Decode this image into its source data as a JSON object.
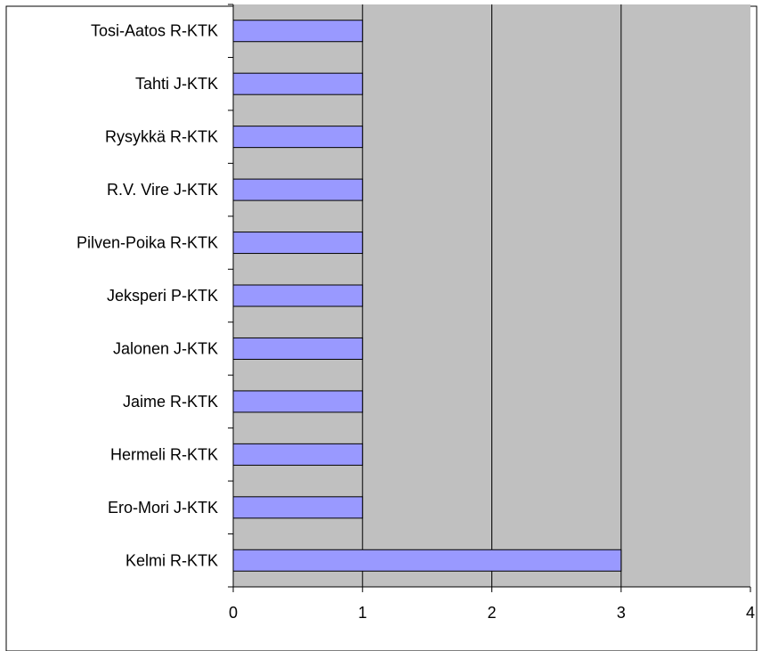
{
  "chart_data": {
    "type": "bar",
    "orientation": "horizontal",
    "title": "",
    "xlabel": "",
    "ylabel": "",
    "categories": [
      "Kelmi R-KTK",
      "Ero-Mori J-KTK",
      "Hermeli R-KTK",
      "Jaime R-KTK",
      "Jalonen J-KTK",
      "Jeksperi P-KTK",
      "Pilven-Poika R-KTK",
      "R.V. Vire J-KTK",
      "Rysykkä R-KTK",
      "Tahti J-KTK",
      "Tosi-Aatos R-KTK"
    ],
    "values": [
      3,
      1,
      1,
      1,
      1,
      1,
      1,
      1,
      1,
      1,
      1
    ],
    "xlim": [
      0,
      4
    ],
    "xticks": [
      "0",
      "1",
      "2",
      "3",
      "4"
    ],
    "grid": "vertical",
    "legend": "none",
    "colors": {
      "bar_fill": "#9999ff",
      "bar_stroke": "#000000",
      "plot_background": "#c0c0c0",
      "gridline": "#000000"
    }
  }
}
